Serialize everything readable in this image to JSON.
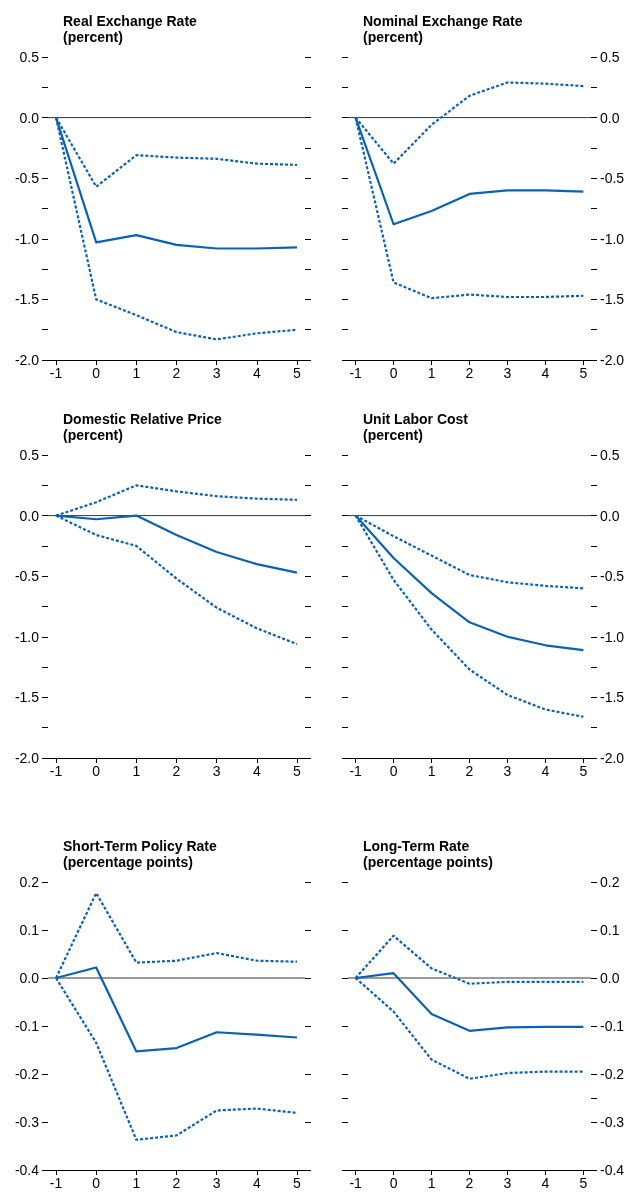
{
  "chart_data": [
    {
      "type": "line",
      "title": "Real Exchange Rate",
      "subtitle": "(percent)",
      "x": [
        -1,
        0,
        1,
        2,
        3,
        4,
        5
      ],
      "xlim": [
        -1.2,
        5.2
      ],
      "xticks": [
        -1,
        0,
        1,
        2,
        3,
        4,
        5
      ],
      "ylim": [
        -2.0,
        0.5
      ],
      "yticks": [
        {
          "value": -2,
          "label": "-2.0"
        },
        {
          "value": -1.75,
          "label": null
        },
        -1.5,
        {
          "value": -1.25,
          "label": null
        },
        {
          "value": -1,
          "label": "-1.0"
        },
        {
          "value": -0.75,
          "label": null
        },
        -0.5,
        {
          "value": -0.25,
          "label": null
        },
        {
          "value": 0,
          "label": "0.0"
        },
        {
          "value": 0.25,
          "label": null
        },
        0.5
      ],
      "ref_lines": [
        {
          "axis": "y",
          "value": 0,
          "color": "#000000"
        }
      ],
      "series": [
        {
          "color": "#0b62b0",
          "line_style": "solid",
          "values": [
            0,
            -1.03,
            -0.97,
            -1.05,
            -1.08,
            -1.08,
            -1.07
          ]
        },
        {
          "color": "#0b62b0",
          "line_style": "dashed",
          "values": [
            0,
            -0.57,
            -0.31,
            -0.33,
            -0.34,
            -0.38,
            -0.39
          ]
        },
        {
          "color": "#0b62b0",
          "line_style": "dashed",
          "values": [
            0,
            -1.5,
            -1.63,
            -1.77,
            -1.83,
            -1.78,
            -1.75
          ]
        }
      ]
    },
    {
      "type": "line",
      "title": "Nominal Exchange Rate",
      "subtitle": "(percent)",
      "x": [
        -1,
        0,
        1,
        2,
        3,
        4,
        5
      ],
      "xlim": [
        -1.2,
        5.2
      ],
      "xticks": [
        -1,
        0,
        1,
        2,
        3,
        4,
        5
      ],
      "ylim": [
        -2.0,
        0.5
      ],
      "yticks": [
        {
          "value": -2,
          "label": "-2.0"
        },
        {
          "value": -1.75,
          "label": null
        },
        -1.5,
        {
          "value": -1.25,
          "label": null
        },
        {
          "value": -1,
          "label": "-1.0"
        },
        {
          "value": -0.75,
          "label": null
        },
        -0.5,
        {
          "value": -0.25,
          "label": null
        },
        {
          "value": 0,
          "label": "0.0"
        },
        {
          "value": 0.25,
          "label": null
        },
        0.5
      ],
      "ref_lines": [
        {
          "axis": "y",
          "value": 0,
          "color": "#000000"
        }
      ],
      "series": [
        {
          "color": "#0b62b0",
          "line_style": "solid",
          "values": [
            0,
            -0.88,
            -0.77,
            -0.63,
            -0.6,
            -0.6,
            -0.61
          ]
        },
        {
          "color": "#0b62b0",
          "line_style": "dashed",
          "values": [
            0,
            -0.38,
            -0.06,
            0.18,
            0.29,
            0.28,
            0.26
          ]
        },
        {
          "color": "#0b62b0",
          "line_style": "dashed",
          "values": [
            0,
            -1.36,
            -1.49,
            -1.46,
            -1.48,
            -1.48,
            -1.47
          ]
        }
      ]
    },
    {
      "type": "line",
      "title": "Domestic Relative Price",
      "subtitle": "(percent)",
      "x": [
        -1,
        0,
        1,
        2,
        3,
        4,
        5
      ],
      "xlim": [
        -1.2,
        5.2
      ],
      "xticks": [
        -1,
        0,
        1,
        2,
        3,
        4,
        5
      ],
      "ylim": [
        -2.0,
        0.5
      ],
      "yticks": [
        {
          "value": -2,
          "label": "-2.0"
        },
        {
          "value": -1.75,
          "label": null
        },
        -1.5,
        {
          "value": -1.25,
          "label": null
        },
        {
          "value": -1,
          "label": "-1.0"
        },
        {
          "value": -0.75,
          "label": null
        },
        -0.5,
        {
          "value": -0.25,
          "label": null
        },
        {
          "value": 0,
          "label": "0.0"
        },
        {
          "value": 0.25,
          "label": null
        },
        0.5
      ],
      "ref_lines": [
        {
          "axis": "y",
          "value": 0,
          "color": "#000000"
        }
      ],
      "series": [
        {
          "color": "#0b62b0",
          "line_style": "solid",
          "values": [
            0,
            -0.03,
            0,
            -0.16,
            -0.3,
            -0.4,
            -0.47
          ]
        },
        {
          "color": "#0b62b0",
          "line_style": "dashed",
          "values": [
            0,
            0.11,
            0.25,
            0.2,
            0.16,
            0.14,
            0.13
          ]
        },
        {
          "color": "#0b62b0",
          "line_style": "dashed",
          "values": [
            0,
            -0.16,
            -0.25,
            -0.52,
            -0.76,
            -0.93,
            -1.06
          ]
        }
      ]
    },
    {
      "type": "line",
      "title": "Unit Labor Cost",
      "subtitle": "(percent)",
      "x": [
        -1,
        0,
        1,
        2,
        3,
        4,
        5
      ],
      "xlim": [
        -1.2,
        5.2
      ],
      "xticks": [
        -1,
        0,
        1,
        2,
        3,
        4,
        5
      ],
      "ylim": [
        -2.0,
        0.5
      ],
      "yticks": [
        {
          "value": -2,
          "label": "-2.0"
        },
        {
          "value": -1.75,
          "label": null
        },
        -1.5,
        {
          "value": -1.25,
          "label": null
        },
        {
          "value": -1,
          "label": "-1.0"
        },
        {
          "value": -0.75,
          "label": null
        },
        -0.5,
        {
          "value": -0.25,
          "label": null
        },
        {
          "value": 0,
          "label": "0.0"
        },
        {
          "value": 0.25,
          "label": null
        },
        0.5
      ],
      "ref_lines": [
        {
          "axis": "y",
          "value": 0,
          "color": "#000000"
        }
      ],
      "series": [
        {
          "color": "#0b62b0",
          "line_style": "solid",
          "values": [
            0,
            -0.35,
            -0.64,
            -0.88,
            -1.0,
            -1.07,
            -1.11
          ]
        },
        {
          "color": "#0b62b0",
          "line_style": "dashed",
          "values": [
            0,
            -0.17,
            -0.33,
            -0.49,
            -0.55,
            -0.58,
            -0.6
          ]
        },
        {
          "color": "#0b62b0",
          "line_style": "dashed",
          "values": [
            0,
            -0.53,
            -0.94,
            -1.27,
            -1.48,
            -1.6,
            -1.66
          ]
        }
      ]
    },
    {
      "type": "line",
      "title": "Short-Term Policy Rate",
      "subtitle": "(percentage points)",
      "x": [
        -1,
        0,
        1,
        2,
        3,
        4,
        5
      ],
      "xlim": [
        -1.2,
        5.2
      ],
      "xticks": [
        -1,
        0,
        1,
        2,
        3,
        4,
        5
      ],
      "ylim": [
        -0.4,
        0.2
      ],
      "yticks": [
        -0.4,
        -0.3,
        -0.2,
        -0.1,
        {
          "value": 0,
          "label": "0.0"
        },
        0.1,
        0.2
      ],
      "ref_lines": [
        {
          "axis": "y",
          "value": 0,
          "color": "#000000"
        }
      ],
      "series": [
        {
          "color": "#0b62b0",
          "line_style": "solid",
          "values": [
            0,
            0.022,
            -0.153,
            -0.146,
            -0.113,
            -0.118,
            -0.124
          ]
        },
        {
          "color": "#0b62b0",
          "line_style": "dashed",
          "values": [
            0,
            0.177,
            0.032,
            0.036,
            0.052,
            0.036,
            0.034
          ]
        },
        {
          "color": "#0b62b0",
          "line_style": "dashed",
          "values": [
            0,
            -0.135,
            -0.337,
            -0.328,
            -0.276,
            -0.272,
            -0.281
          ]
        }
      ]
    },
    {
      "type": "line",
      "title": "Long-Term Rate",
      "subtitle": "(percentage points)",
      "x": [
        -1,
        0,
        1,
        2,
        3,
        4,
        5
      ],
      "xlim": [
        -1.2,
        5.2
      ],
      "xticks": [
        -1,
        0,
        1,
        2,
        3,
        4,
        5
      ],
      "ylim": [
        -0.4,
        0.2
      ],
      "yticks": [
        -0.4,
        -0.3,
        {
          "value": -0.25,
          "label": null
        },
        -0.2,
        -0.1,
        {
          "value": 0,
          "label": "0.0"
        },
        0.1,
        0.2
      ],
      "ref_lines": [
        {
          "axis": "y",
          "value": 0,
          "color": "#000000"
        }
      ],
      "series": [
        {
          "color": "#0b62b0",
          "line_style": "solid",
          "values": [
            0,
            0.01,
            -0.075,
            -0.11,
            -0.103,
            -0.102,
            -0.102
          ]
        },
        {
          "color": "#0b62b0",
          "line_style": "dashed",
          "values": [
            0,
            0.088,
            0.02,
            -0.012,
            -0.008,
            -0.008,
            -0.008
          ]
        },
        {
          "color": "#0b62b0",
          "line_style": "dashed",
          "values": [
            0,
            -0.07,
            -0.17,
            -0.21,
            -0.198,
            -0.195,
            -0.195
          ]
        }
      ]
    }
  ]
}
